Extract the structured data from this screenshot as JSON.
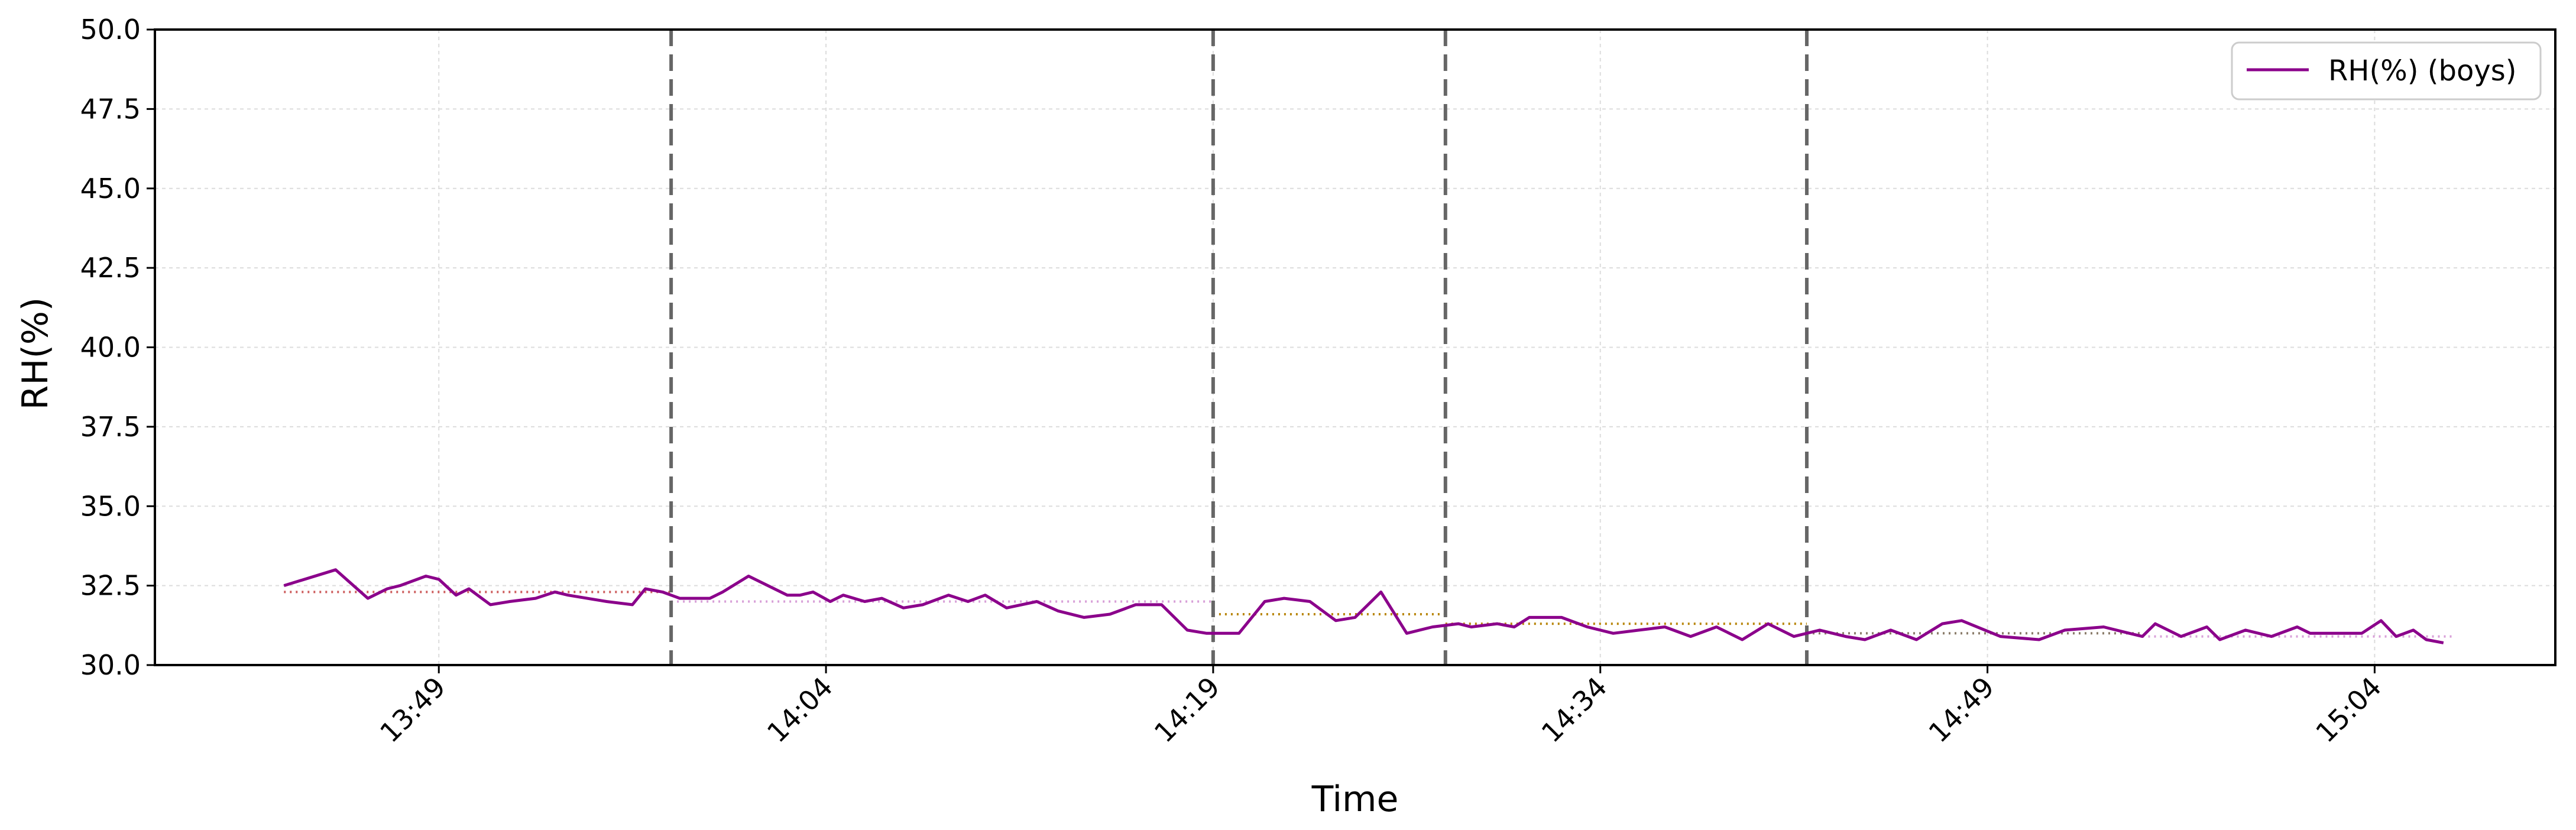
{
  "colors": {
    "series": "#8b008b",
    "divider": "#666666",
    "grid": "#dcdcdc",
    "mean_segments": [
      "#cd5c5c",
      "#d8a0d8",
      "#b8860b",
      "#b8860b",
      "#8b7d6b",
      "#d8a0d8"
    ]
  },
  "chart_data": {
    "type": "line",
    "title": "",
    "xlabel": "Time",
    "ylabel": "RH(%)",
    "ylim": [
      30.0,
      50.0
    ],
    "xlim": [
      "13:38",
      "15:11"
    ],
    "yticks": [
      "30.0",
      "32.5",
      "35.0",
      "37.5",
      "40.0",
      "42.5",
      "45.0",
      "47.5",
      "50.0"
    ],
    "xticks": [
      "13:49",
      "14:04",
      "14:19",
      "14:34",
      "14:49",
      "15:04"
    ],
    "grid": true,
    "legend": {
      "position": "top-right",
      "entries": [
        "RH(%) (boys)"
      ]
    },
    "series": [
      {
        "name": "RH(%) (boys)",
        "x": [
          "13:43:00",
          "13:45:00",
          "13:46:15",
          "13:47:00",
          "13:47:30",
          "13:48:30",
          "13:49:00",
          "13:49:40",
          "13:50:10",
          "13:51:00",
          "13:51:45",
          "13:52:45",
          "13:53:30",
          "13:54:00",
          "13:55:30",
          "13:56:30",
          "13:57:00",
          "13:57:40",
          "13:58:20",
          "13:59:30",
          "14:00:00",
          "14:01:00",
          "14:02:30",
          "14:03:00",
          "14:03:30",
          "14:04:10",
          "14:04:40",
          "14:05:30",
          "14:06:10",
          "14:07:00",
          "14:07:45",
          "14:08:45",
          "14:09:30",
          "14:10:10",
          "14:11:00",
          "14:12:10",
          "14:13:00",
          "14:14:00",
          "14:15:00",
          "14:16:00",
          "14:17:00",
          "14:18:00",
          "14:18:45",
          "14:20:00",
          "14:21:00",
          "14:21:45",
          "14:22:45",
          "14:23:45",
          "14:24:30",
          "14:25:30",
          "14:26:30",
          "14:27:30",
          "14:28:30",
          "14:29:00",
          "14:30:00",
          "14:30:40",
          "14:31:15",
          "14:32:00",
          "14:32:30",
          "14:33:30",
          "14:34:30",
          "14:35:30",
          "14:36:30",
          "14:37:30",
          "14:38:30",
          "14:39:30",
          "14:40:30",
          "14:41:30",
          "14:42:30",
          "14:43:30",
          "14:44:15",
          "14:45:15",
          "14:46:15",
          "14:47:15",
          "14:48:00",
          "14:49:30",
          "14:51:00",
          "14:52:00",
          "14:53:30",
          "14:54:30",
          "14:55:00",
          "14:55:30",
          "14:56:30",
          "14:57:30",
          "14:58:00",
          "14:59:00",
          "15:00:00",
          "15:01:00",
          "15:01:30",
          "15:02:30",
          "15:03:30",
          "15:04:15",
          "15:04:50",
          "15:05:30",
          "15:06:00",
          "15:06:40"
        ],
        "y": [
          32.5,
          33.0,
          32.1,
          32.4,
          32.5,
          32.8,
          32.7,
          32.2,
          32.4,
          31.9,
          32.0,
          32.1,
          32.3,
          32.2,
          32.0,
          31.9,
          32.4,
          32.3,
          32.1,
          32.1,
          32.3,
          32.8,
          32.2,
          32.2,
          32.3,
          32.0,
          32.2,
          32.0,
          32.1,
          31.8,
          31.9,
          32.2,
          32.0,
          32.2,
          31.8,
          32.0,
          31.7,
          31.5,
          31.6,
          31.9,
          31.9,
          31.1,
          31.0,
          31.0,
          32.0,
          32.1,
          32.0,
          31.4,
          31.5,
          32.3,
          31.0,
          31.2,
          31.3,
          31.2,
          31.3,
          31.2,
          31.5,
          31.5,
          31.5,
          31.2,
          31.0,
          31.1,
          31.2,
          30.9,
          31.2,
          30.8,
          31.3,
          30.9,
          31.1,
          30.9,
          30.8,
          31.1,
          30.8,
          31.3,
          31.4,
          30.9,
          30.8,
          31.1,
          31.2,
          31.0,
          30.9,
          31.3,
          30.9,
          31.2,
          30.8,
          31.1,
          30.9,
          31.2,
          31.0,
          31.0,
          31.0,
          31.4,
          30.9,
          31.1,
          30.8,
          30.7
        ]
      }
    ],
    "dividers": [
      "13:58",
      "14:19",
      "14:28",
      "14:42"
    ],
    "mean_segments": [
      {
        "start": "13:43",
        "end": "13:58",
        "value": 32.3
      },
      {
        "start": "13:58",
        "end": "14:19",
        "value": 32.0
      },
      {
        "start": "14:19",
        "end": "14:28",
        "value": 31.6
      },
      {
        "start": "14:28",
        "end": "14:42",
        "value": 31.3
      },
      {
        "start": "14:42",
        "end": "14:55",
        "value": 31.0
      },
      {
        "start": "14:55",
        "end": "15:07",
        "value": 30.9
      }
    ]
  }
}
